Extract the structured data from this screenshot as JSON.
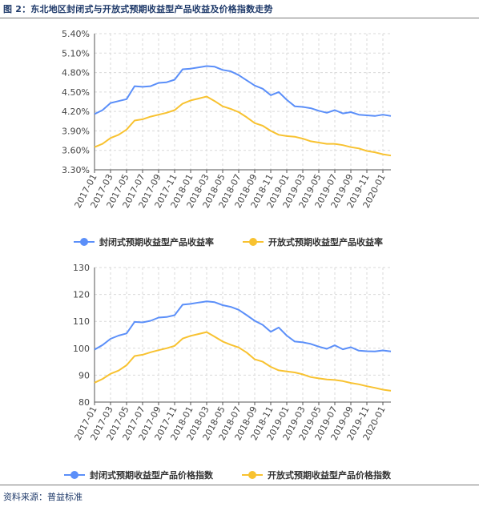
{
  "figure": {
    "title": "图 2：东北地区封闭式与开放式预期收益型产品收益及价格指数走势",
    "source": "资料来源：普益标准"
  },
  "colors": {
    "blue": "#5b8ff9",
    "yellow": "#f8c230",
    "grid": "#d9d9d9",
    "axis": "#555555"
  },
  "chart_data": [
    {
      "type": "line",
      "categories": [
        "2017-01",
        "2017-02",
        "2017-03",
        "2017-04",
        "2017-05",
        "2017-06",
        "2017-07",
        "2017-08",
        "2017-09",
        "2017-10",
        "2017-11",
        "2017-12",
        "2018-01",
        "2018-02",
        "2018-03",
        "2018-04",
        "2018-05",
        "2018-06",
        "2018-07",
        "2018-08",
        "2018-09",
        "2018-10",
        "2018-11",
        "2018-12",
        "2019-01",
        "2019-02",
        "2019-03",
        "2019-04",
        "2019-05",
        "2019-06",
        "2019-07",
        "2019-08",
        "2019-09",
        "2019-10",
        "2019-11",
        "2019-12",
        "2020-01",
        "2020-02"
      ],
      "tick_labels": [
        "2017-01",
        "2017-03",
        "2017-05",
        "2017-07",
        "2017-09",
        "2017-11",
        "2018-01",
        "2018-03",
        "2018-05",
        "2018-07",
        "2018-09",
        "2018-11",
        "2019-01",
        "2019-03",
        "2019-05",
        "2019-07",
        "2019-09",
        "2019-11",
        "2020-01"
      ],
      "y_ticks": [
        "5.40%",
        "5.10%",
        "4.80%",
        "4.50%",
        "4.20%",
        "3.90%",
        "3.60%",
        "3.30%"
      ],
      "ylim": [
        3.3,
        5.4
      ],
      "grid": true,
      "legend_position": "bottom",
      "series": [
        {
          "name": "封闭式预期收益型产品收益率",
          "color": "#5b8ff9",
          "values": [
            4.16,
            4.22,
            4.33,
            4.36,
            4.39,
            4.59,
            4.58,
            4.59,
            4.64,
            4.65,
            4.69,
            4.85,
            4.86,
            4.88,
            4.9,
            4.89,
            4.84,
            4.82,
            4.76,
            4.68,
            4.6,
            4.55,
            4.45,
            4.5,
            4.38,
            4.28,
            4.27,
            4.25,
            4.21,
            4.18,
            4.22,
            4.17,
            4.19,
            4.15,
            4.14,
            4.13,
            4.15,
            4.13
          ]
        },
        {
          "name": "开放式预期收益型产品收益率",
          "color": "#f8c230",
          "values": [
            3.65,
            3.7,
            3.79,
            3.84,
            3.92,
            4.06,
            4.08,
            4.12,
            4.15,
            4.18,
            4.22,
            4.32,
            4.37,
            4.4,
            4.43,
            4.36,
            4.28,
            4.24,
            4.19,
            4.11,
            4.02,
            3.98,
            3.9,
            3.84,
            3.82,
            3.81,
            3.78,
            3.74,
            3.72,
            3.7,
            3.7,
            3.68,
            3.65,
            3.63,
            3.59,
            3.57,
            3.54,
            3.52
          ]
        }
      ]
    },
    {
      "type": "line",
      "categories": [
        "2017-01",
        "2017-02",
        "2017-03",
        "2017-04",
        "2017-05",
        "2017-06",
        "2017-07",
        "2017-08",
        "2017-09",
        "2017-10",
        "2017-11",
        "2017-12",
        "2018-01",
        "2018-02",
        "2018-03",
        "2018-04",
        "2018-05",
        "2018-06",
        "2018-07",
        "2018-08",
        "2018-09",
        "2018-10",
        "2018-11",
        "2018-12",
        "2019-01",
        "2019-02",
        "2019-03",
        "2019-04",
        "2019-05",
        "2019-06",
        "2019-07",
        "2019-08",
        "2019-09",
        "2019-10",
        "2019-11",
        "2019-12",
        "2020-01",
        "2020-02"
      ],
      "tick_labels": [
        "2017-01",
        "2017-03",
        "2017-05",
        "2017-07",
        "2017-09",
        "2017-11",
        "2018-01",
        "2018-03",
        "2018-05",
        "2018-07",
        "2018-09",
        "2018-11",
        "2019-01",
        "2019-03",
        "2019-05",
        "2019-07",
        "2019-09",
        "2019-11",
        "2020-01"
      ],
      "y_ticks": [
        "130",
        "120",
        "110",
        "100",
        "90",
        "80"
      ],
      "ylim": [
        80,
        130
      ],
      "grid": true,
      "legend_position": "bottom",
      "series": [
        {
          "name": "封闭式预期收益型产品价格指数",
          "color": "#5b8ff9",
          "values": [
            99.5,
            101.2,
            103.5,
            104.7,
            105.5,
            109.8,
            109.6,
            110.2,
            111.4,
            111.6,
            112.3,
            116.2,
            116.5,
            117.0,
            117.4,
            117.1,
            116.0,
            115.4,
            114.3,
            112.3,
            110.2,
            108.7,
            106.1,
            107.7,
            104.7,
            102.5,
            102.2,
            101.6,
            100.6,
            99.8,
            101.1,
            99.6,
            100.4,
            99.1,
            98.9,
            98.8,
            99.2,
            98.8
          ]
        },
        {
          "name": "开放式预期收益型产品价格指数",
          "color": "#f8c230",
          "values": [
            87.2,
            88.6,
            90.5,
            91.7,
            93.7,
            97.1,
            97.6,
            98.5,
            99.3,
            100.0,
            100.9,
            103.6,
            104.6,
            105.3,
            106.0,
            104.3,
            102.5,
            101.3,
            100.3,
            98.4,
            95.9,
            95.0,
            93.1,
            91.8,
            91.4,
            91.0,
            90.3,
            89.3,
            88.8,
            88.4,
            88.2,
            87.8,
            87.1,
            86.6,
            85.9,
            85.3,
            84.6,
            84.2
          ]
        }
      ]
    }
  ]
}
